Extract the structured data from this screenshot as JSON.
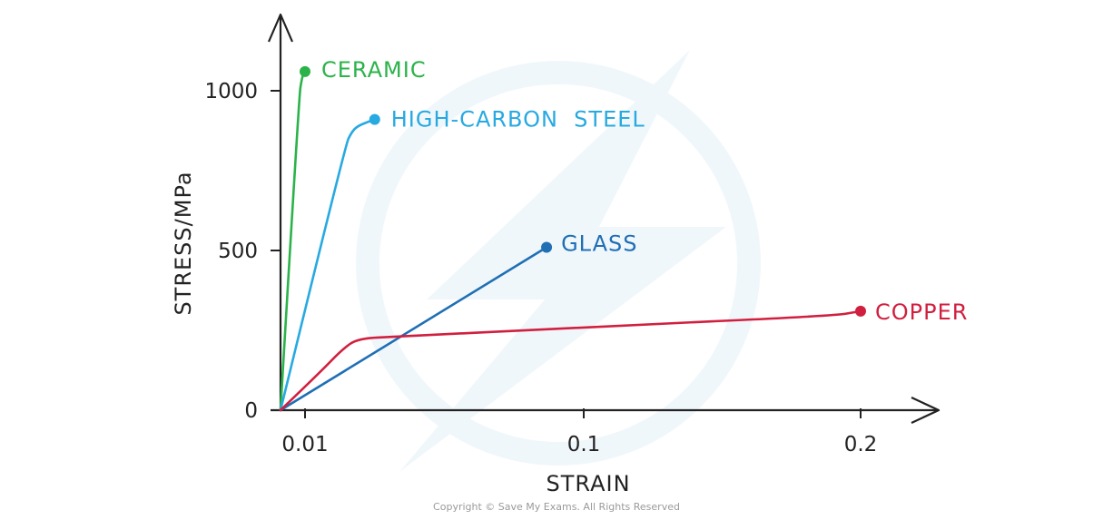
{
  "chart_data": {
    "type": "line",
    "xlabel": "STRAIN",
    "ylabel": "STRESS/MPa",
    "x_ticks": [
      {
        "value": 0.01,
        "label": "0.01"
      },
      {
        "value": 0.1,
        "label": "0.1"
      },
      {
        "value": 0.2,
        "label": "0.2"
      }
    ],
    "y_ticks": [
      {
        "value": 0,
        "label": "0"
      },
      {
        "value": 500,
        "label": "500"
      },
      {
        "value": 1000,
        "label": "1000"
      }
    ],
    "xlim": [
      0.006,
      0.23
    ],
    "ylim": [
      0,
      1250
    ],
    "grid": false,
    "legend": "labels at line ends",
    "series": [
      {
        "name": "CERAMIC",
        "color": "#2bb34a",
        "x": [
          0.006,
          0.009,
          0.0095,
          0.0098,
          0.01
        ],
        "y": [
          0,
          980,
          1040,
          1055,
          1060
        ]
      },
      {
        "name": "HIGH-CARBON  STEEL",
        "color": "#27a9e1",
        "x": [
          0.006,
          0.023,
          0.025,
          0.027,
          0.031,
          0.0325
        ],
        "y": [
          0,
          830,
          870,
          890,
          905,
          910
        ]
      },
      {
        "name": "GLASS",
        "color": "#1f6fb5",
        "x": [
          0.006,
          0.088
        ],
        "y": [
          0,
          510
        ]
      },
      {
        "name": "COPPER",
        "color": "#d11f3f",
        "x": [
          0.006,
          0.015,
          0.022,
          0.027,
          0.04,
          0.1,
          0.19,
          0.2
        ],
        "y": [
          0,
          120,
          190,
          225,
          230,
          260,
          295,
          310
        ]
      }
    ]
  },
  "copyright": "Copyright © Save My Exams. All Rights Reserved"
}
